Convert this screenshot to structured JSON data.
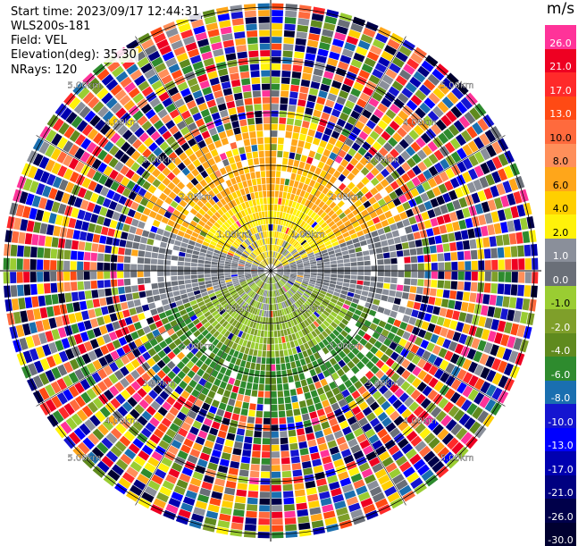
{
  "header": {
    "start_time": "Start time: 2023/09/17 12:44:31",
    "station": "WLS200s-181",
    "field": "Field: VEL",
    "elevation": "Elevation(deg): 35.30",
    "nrays": "NRays: 120"
  },
  "colorbar": {
    "unit": "m/s",
    "levels": [
      {
        "label": "26.0",
        "color": "#ff3399"
      },
      {
        "label": "21.0",
        "color": "#ee0022"
      },
      {
        "label": "17.0",
        "color": "#ff2a2a"
      },
      {
        "label": "13.0",
        "color": "#ff4a14"
      },
      {
        "label": "10.0",
        "color": "#ff6a3d"
      },
      {
        "label": "8.0",
        "color": "#ff8f5a"
      },
      {
        "label": "6.0",
        "color": "#ffa61a"
      },
      {
        "label": "4.0",
        "color": "#ffcf00"
      },
      {
        "label": "2.0",
        "color": "#fff20a"
      },
      {
        "label": "1.0",
        "color": "#8a8f9a"
      },
      {
        "label": "0.0",
        "color": "#6a6f78"
      },
      {
        "label": "-1.0",
        "color": "#9acd32"
      },
      {
        "label": "-2.0",
        "color": "#7f9f2a"
      },
      {
        "label": "-4.0",
        "color": "#5f8a1e"
      },
      {
        "label": "-6.0",
        "color": "#2e8b2e"
      },
      {
        "label": "-8.0",
        "color": "#1a6fb0"
      },
      {
        "label": "-10.0",
        "color": "#1515d0"
      },
      {
        "label": "-13.0",
        "color": "#0000ff"
      },
      {
        "label": "-17.0",
        "color": "#0000b0"
      },
      {
        "label": "-21.0",
        "color": "#000080"
      },
      {
        "label": "-26.0",
        "color": "#00004a"
      },
      {
        "label": "-30.0",
        "color": "#000030"
      }
    ]
  },
  "range_labels": [
    "1.00km",
    "2.00km",
    "3.00km",
    "4.00km",
    "5.00km"
  ]
}
